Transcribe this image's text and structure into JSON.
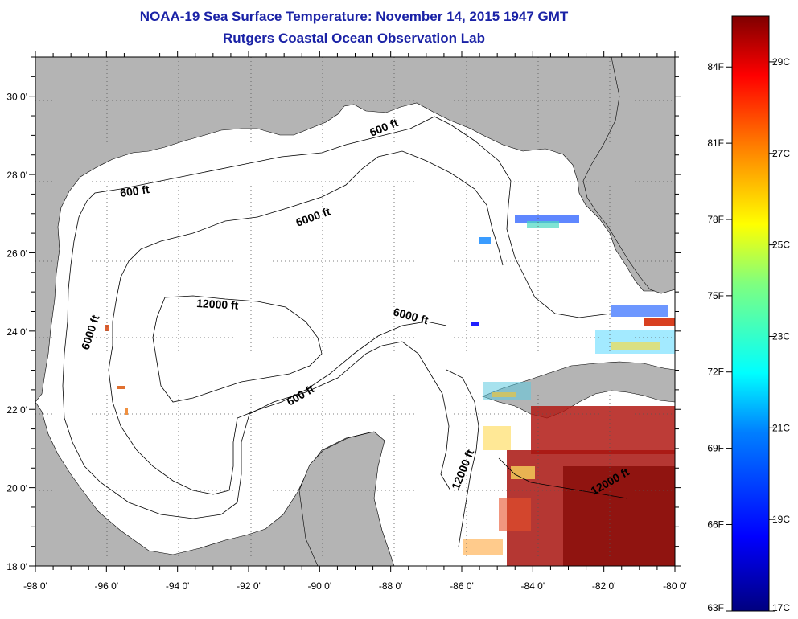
{
  "title": "NOAA-19 Sea Surface Temperature:  November 14, 2015 1947 GMT",
  "subtitle": "Rutgers Coastal Ocean Observation Lab",
  "map": {
    "lon_range": [
      -98,
      -80
    ],
    "lat_range": [
      18,
      31
    ],
    "lon_ticks": [
      "-98 0'",
      "-96 0'",
      "-94 0'",
      "-92 0'",
      "-90 0'",
      "-88 0'",
      "-86 0'",
      "-84 0'",
      "-82 0'",
      "-80 0'"
    ],
    "lat_ticks": [
      "18 0'",
      "20 0'",
      "22 0'",
      "24 0'",
      "26 0'",
      "28 0'",
      "30 0'"
    ],
    "grid": "dotted",
    "land_color": "#b4b4b4",
    "water_color": "#ffffff",
    "contour_labels": [
      "600 ft",
      "600 ft",
      "600 ft",
      "6000 ft",
      "6000 ft",
      "6000 ft",
      "12000 ft",
      "12000 ft",
      "12000 ft"
    ]
  },
  "colorbar": {
    "fahrenheit_labels": [
      "84F",
      "81F",
      "78F",
      "75F",
      "72F",
      "69F",
      "66F",
      "63F"
    ],
    "celsius_labels": [
      "29C",
      "27C",
      "25C",
      "23C",
      "21C",
      "19C",
      "17C"
    ],
    "range_c": [
      17,
      30
    ],
    "colors": [
      "#00007f",
      "#0000ff",
      "#007fff",
      "#00ffff",
      "#7fff7f",
      "#ffff00",
      "#ff7f00",
      "#ff0000",
      "#7f0000"
    ]
  }
}
